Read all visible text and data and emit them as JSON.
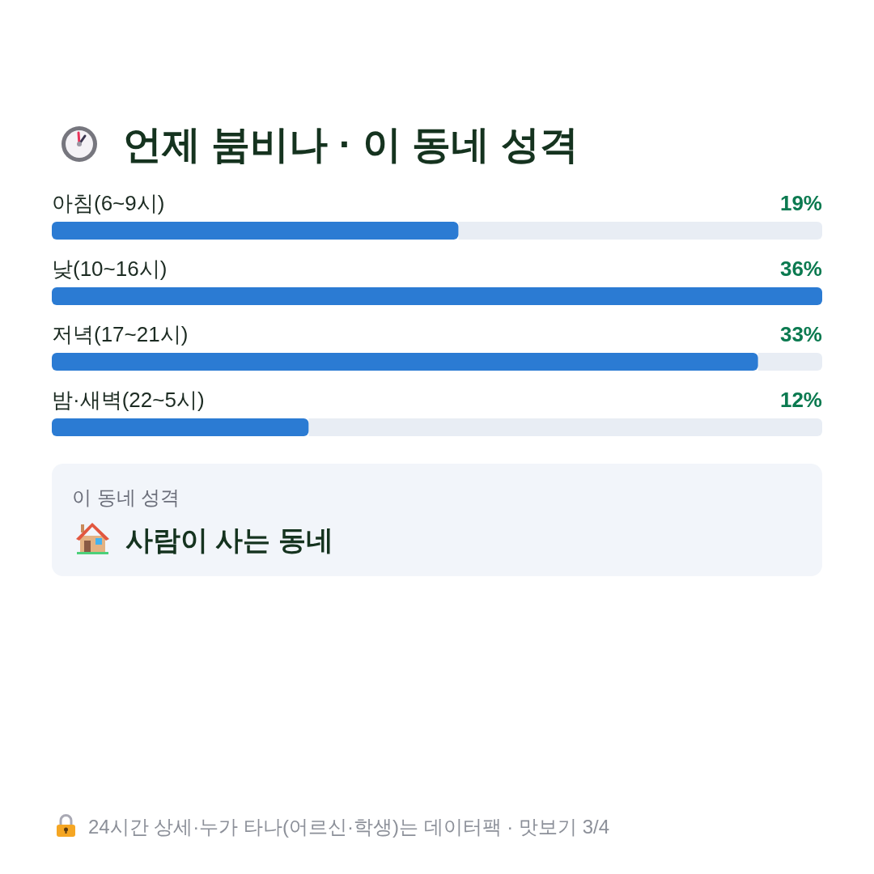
{
  "chart_data": {
    "type": "bar",
    "orientation": "horizontal",
    "title": "언제 붐비나 · 이 동네 성격",
    "categories": [
      "아침(6~9시)",
      "낮(10~16시)",
      "저녁(17~21시)",
      "밤·새벽(22~5시)"
    ],
    "values": [
      19,
      36,
      33,
      12
    ],
    "value_labels": [
      "19%",
      "36%",
      "33%",
      "12%"
    ],
    "color": "#2b7bd3",
    "xlim": [
      0,
      36
    ],
    "annotations": [
      "이 동네 성격",
      "사람이 사는 동네",
      "24시간 상세·누가 타나(어르신·학생)는 데이터팩 · 맛보기 3/4"
    ]
  }
}
